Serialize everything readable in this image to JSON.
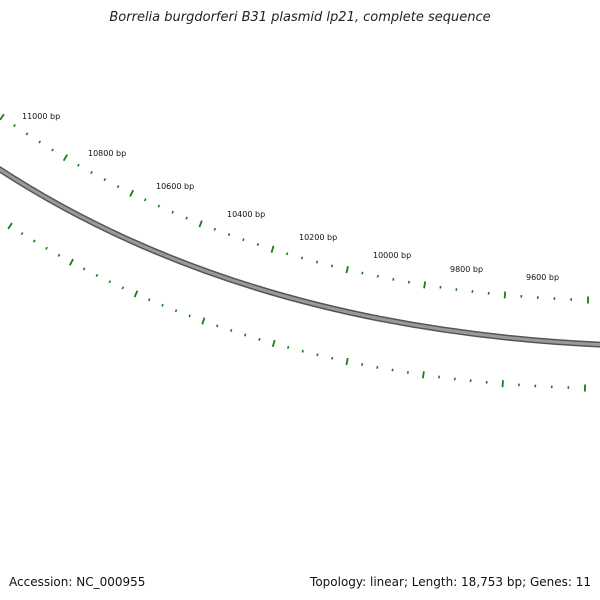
{
  "title": "Borrelia burgdorferi B31 plasmid lp21, complete sequence",
  "footer": {
    "accession": "Accession: NC_000955",
    "summary": "Topology: linear; Length: 18,753 bp; Genes: 11"
  },
  "colors": {
    "backbone": "#808080",
    "backbone_edge": "#555555",
    "feature": "#1a7a1a"
  },
  "ruler": {
    "labels": [
      "11000 bp",
      "10800 bp",
      "10600 bp",
      "10400 bp",
      "10200 bp",
      "10000 bp",
      "9800 bp",
      "9600 bp"
    ]
  }
}
